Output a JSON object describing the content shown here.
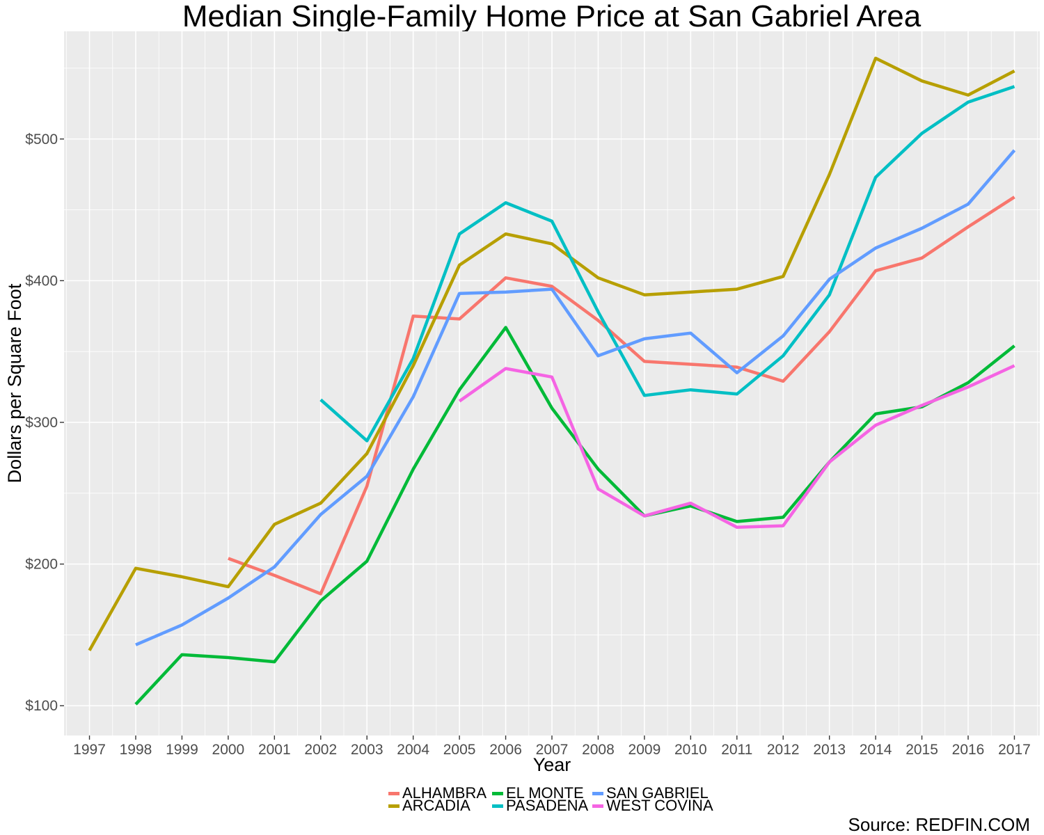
{
  "chart_data": {
    "type": "line",
    "title": "Median Single-Family Home Price at San Gabriel Area",
    "xlabel": "Year",
    "ylabel": "Dollars per Square Foot",
    "x": [
      1997,
      1998,
      1999,
      2000,
      2001,
      2002,
      2003,
      2004,
      2005,
      2006,
      2007,
      2008,
      2009,
      2010,
      2011,
      2012,
      2013,
      2014,
      2015,
      2016,
      2017
    ],
    "xlim": [
      1996.45,
      2017.55
    ],
    "ylim": [
      79,
      576
    ],
    "y_ticks": [
      100,
      200,
      300,
      400,
      500
    ],
    "y_tick_labels": [
      "$100",
      "$200",
      "$300",
      "$400",
      "$500"
    ],
    "grid": true,
    "legend_position": "bottom",
    "source": "Source: REDFIN.COM",
    "series": [
      {
        "name": "ALHAMBRA",
        "color": "#F8766D",
        "values": [
          null,
          null,
          null,
          204,
          192,
          179,
          255,
          375,
          373,
          402,
          396,
          372,
          343,
          341,
          339,
          329,
          364,
          407,
          416,
          438,
          459
        ]
      },
      {
        "name": "ARCADIA",
        "color": "#B79F00",
        "values": [
          139,
          197,
          191,
          184,
          228,
          243,
          278,
          340,
          411,
          433,
          426,
          402,
          390,
          392,
          394,
          403,
          475,
          557,
          541,
          531,
          548
        ]
      },
      {
        "name": "EL MONTE",
        "color": "#00BA38",
        "values": [
          null,
          101,
          136,
          134,
          131,
          174,
          202,
          267,
          323,
          367,
          310,
          267,
          234,
          241,
          230,
          233,
          272,
          306,
          311,
          328,
          354
        ]
      },
      {
        "name": "PASADENA",
        "color": "#00BFC4",
        "values": [
          null,
          null,
          null,
          null,
          null,
          316,
          287,
          345,
          433,
          455,
          442,
          378,
          319,
          323,
          320,
          347,
          390,
          473,
          504,
          526,
          537
        ]
      },
      {
        "name": "SAN GABRIEL",
        "color": "#619CFF",
        "values": [
          null,
          143,
          157,
          176,
          198,
          235,
          262,
          318,
          391,
          392,
          394,
          347,
          359,
          363,
          335,
          361,
          401,
          423,
          437,
          454,
          492
        ]
      },
      {
        "name": "WEST COVINA",
        "color": "#F564E3",
        "values": [
          null,
          null,
          null,
          null,
          null,
          null,
          null,
          null,
          315,
          338,
          332,
          253,
          234,
          243,
          226,
          227,
          272,
          298,
          312,
          325,
          340
        ]
      }
    ]
  },
  "legend": {
    "items": [
      {
        "label": "ALHAMBRA",
        "color": "#F8766D"
      },
      {
        "label": "ARCADIA",
        "color": "#B79F00"
      },
      {
        "label": "EL MONTE",
        "color": "#00BA38"
      },
      {
        "label": "PASADENA",
        "color": "#00BFC4"
      },
      {
        "label": "SAN GABRIEL",
        "color": "#619CFF"
      },
      {
        "label": "WEST COVINA",
        "color": "#F564E3"
      }
    ]
  }
}
